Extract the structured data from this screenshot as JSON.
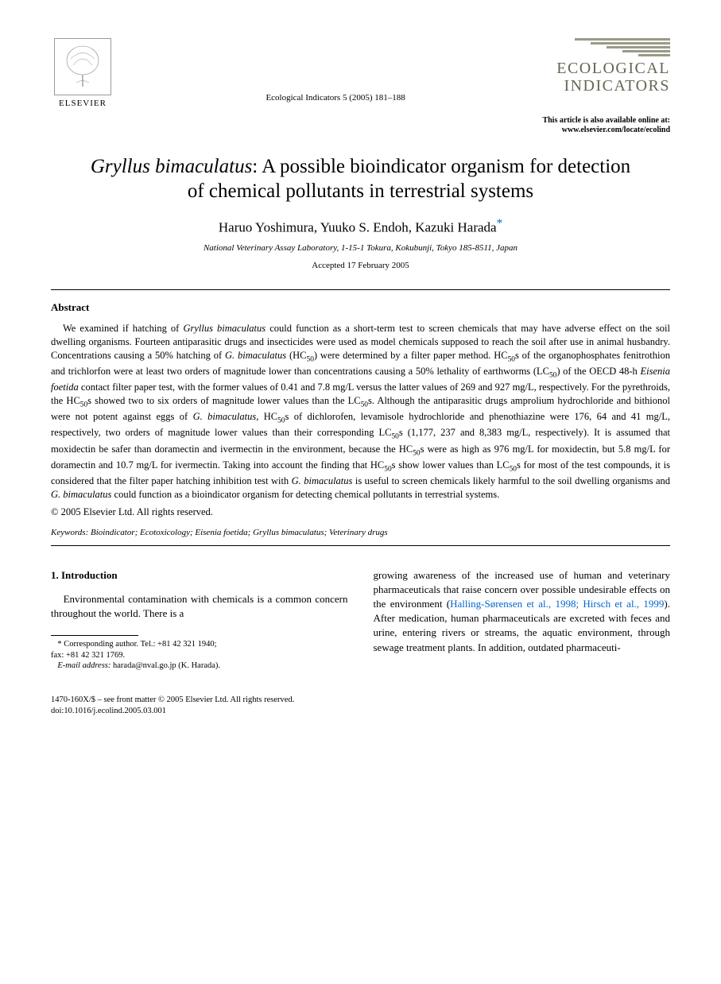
{
  "header": {
    "publisher": "ELSEVIER",
    "citation": "Ecological Indicators 5 (2005) 181–188",
    "journal_name_line1": "ECOLOGICAL",
    "journal_name_line2": "INDICATORS",
    "online_note_line1": "This article is also available online at:",
    "online_note_line2": "www.elsevier.com/locate/ecolind",
    "logo_bar_widths": [
      120,
      100,
      80,
      60,
      40
    ],
    "logo_bar_color": "#9a9a88"
  },
  "title": {
    "italic_part": "Gryllus bimaculatus",
    "rest": ": A possible bioindicator organism for detection of chemical pollutants in terrestrial systems"
  },
  "authors": "Haruo Yoshimura, Yuuko S. Endoh, Kazuki Harada",
  "corr_marker": "*",
  "affiliation": "National Veterinary Assay Laboratory, 1-15-1 Tokura, Kokubunji, Tokyo 185-8511, Japan",
  "accepted": "Accepted 17 February 2005",
  "abstract": {
    "heading": "Abstract",
    "body_html": "We examined if hatching of <span class=\"ital\">Gryllus bimaculatus</span> could function as a short-term test to screen chemicals that may have adverse effect on the soil dwelling organisms. Fourteen antiparasitic drugs and insecticides were used as model chemicals supposed to reach the soil after use in animal husbandry. Concentrations causing a 50% hatching of <span class=\"ital\">G. bimaculatus</span> (HC<sub>50</sub>) were determined by a filter paper method. HC<sub>50</sub>s of the organophosphates fenitrothion and trichlorfon were at least two orders of magnitude lower than concentrations causing a 50% lethality of earthworms (LC<sub>50</sub>) of the OECD 48-h <span class=\"ital\">Eisenia foetida</span> contact filter paper test, with the former values of 0.41 and 7.8 mg/L versus the latter values of 269 and 927 mg/L, respectively. For the pyrethroids, the HC<sub>50</sub>s showed two to six orders of magnitude lower values than the LC<sub>50</sub>s. Although the antiparasitic drugs amprolium hydrochloride and bithionol were not potent against eggs of <span class=\"ital\">G. bimaculatus</span>, HC<sub>50</sub>s of dichlorofen, levamisole hydrochloride and phenothiazine were 176, 64 and 41 mg/L, respectively, two orders of magnitude lower values than their corresponding LC<sub>50</sub>s (1,177, 237 and 8,383 mg/L, respectively). It is assumed that moxidectin be safer than doramectin and ivermectin in the environment, because the HC<sub>50</sub>s were as high as 976 mg/L for moxidectin, but 5.8 mg/L for doramectin and 10.7 mg/L for ivermectin. Taking into account the finding that HC<sub>50</sub>s show lower values than LC<sub>50</sub>s for most of the test compounds, it is considered that the filter paper hatching inhibition test with <span class=\"ital\">G. bimaculatus</span> is useful to screen chemicals likely harmful to the soil dwelling organisms and <span class=\"ital\">G. bimaculatus</span> could function as a bioindicator organism for detecting chemical pollutants in terrestrial systems.",
    "copyright": "© 2005 Elsevier Ltd. All rights reserved."
  },
  "keywords": {
    "label": "Keywords:",
    "text_html": " Bioindicator; Ecotoxicology; <span class=\"ital\">Eisenia foetida</span>; <span class=\"ital\">Gryllus bimaculatus</span>; Veterinary drugs"
  },
  "intro": {
    "heading": "1. Introduction",
    "col1": "Environmental contamination with chemicals is a common concern throughout the world. There is a",
    "col2_html": "growing awareness of the increased use of human and veterinary pharmaceuticals that raise concern over possible undesirable effects on the environment (<span class=\"ref-link\">Halling-Sørensen et al., 1998; Hirsch et al., 1999</span>). After medication, human pharmaceuticals are excreted with feces and urine, entering rivers or streams, the aquatic environment, through sewage treatment plants. In addition, outdated pharmaceuti-"
  },
  "footnote": {
    "corr_text": "Corresponding author. Tel.: +81 42 321 1940;",
    "fax": "fax: +81 42 321 1769.",
    "email_label": "E-mail address:",
    "email": "harada@nval.go.jp (K. Harada)."
  },
  "footer": {
    "line1": "1470-160X/$ – see front matter © 2005 Elsevier Ltd. All rights reserved.",
    "line2": "doi:10.1016/j.ecolind.2005.03.001"
  },
  "colors": {
    "link": "#0066cc",
    "text": "#000000",
    "background": "#ffffff"
  }
}
